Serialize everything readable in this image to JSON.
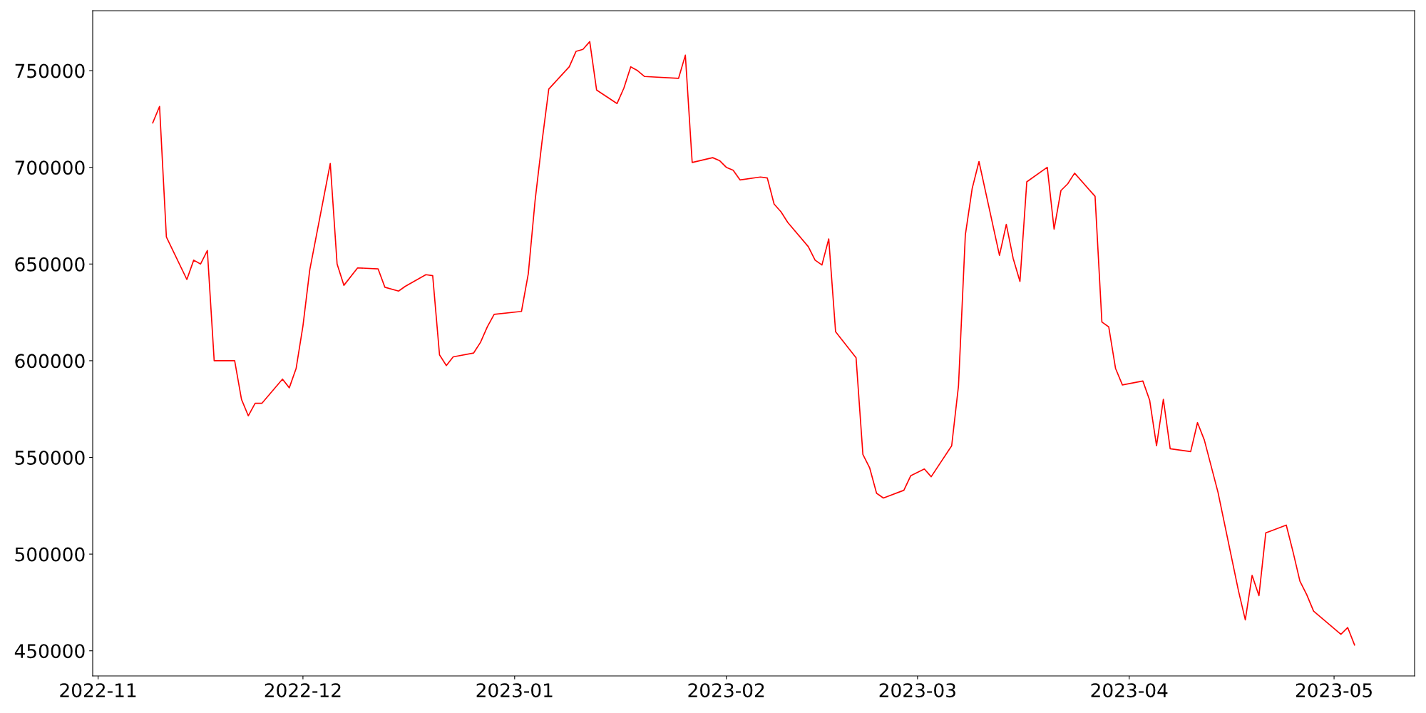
{
  "chart_data": {
    "type": "line",
    "x": [
      "2022-11-09",
      "2022-11-10",
      "2022-11-11",
      "2022-11-14",
      "2022-11-15",
      "2022-11-16",
      "2022-11-17",
      "2022-11-18",
      "2022-11-21",
      "2022-11-22",
      "2022-11-23",
      "2022-11-24",
      "2022-11-25",
      "2022-11-28",
      "2022-11-29",
      "2022-11-30",
      "2022-12-01",
      "2022-12-02",
      "2022-12-05",
      "2022-12-06",
      "2022-12-07",
      "2022-12-09",
      "2022-12-12",
      "2022-12-13",
      "2022-12-15",
      "2022-12-16",
      "2022-12-19",
      "2022-12-20",
      "2022-12-21",
      "2022-12-22",
      "2022-12-23",
      "2022-12-26",
      "2022-12-27",
      "2022-12-28",
      "2022-12-29",
      "2023-01-02",
      "2023-01-03",
      "2023-01-04",
      "2023-01-05",
      "2023-01-06",
      "2023-01-09",
      "2023-01-10",
      "2023-01-11",
      "2023-01-12",
      "2023-01-13",
      "2023-01-16",
      "2023-01-17",
      "2023-01-18",
      "2023-01-19",
      "2023-01-20",
      "2023-01-25",
      "2023-01-26",
      "2023-01-27",
      "2023-01-30",
      "2023-01-31",
      "2023-02-01",
      "2023-02-02",
      "2023-02-03",
      "2023-02-06",
      "2023-02-07",
      "2023-02-08",
      "2023-02-09",
      "2023-02-10",
      "2023-02-13",
      "2023-02-14",
      "2023-02-15",
      "2023-02-16",
      "2023-02-17",
      "2023-02-20",
      "2023-02-21",
      "2023-02-22",
      "2023-02-23",
      "2023-02-24",
      "2023-02-27",
      "2023-02-28",
      "2023-03-02",
      "2023-03-03",
      "2023-03-06",
      "2023-03-07",
      "2023-03-08",
      "2023-03-09",
      "2023-03-10",
      "2023-03-13",
      "2023-03-14",
      "2023-03-15",
      "2023-03-16",
      "2023-03-17",
      "2023-03-20",
      "2023-03-21",
      "2023-03-22",
      "2023-03-23",
      "2023-03-24",
      "2023-03-27",
      "2023-03-28",
      "2023-03-29",
      "2023-03-30",
      "2023-03-31",
      "2023-04-03",
      "2023-04-04",
      "2023-04-05",
      "2023-04-06",
      "2023-04-07",
      "2023-04-10",
      "2023-04-11",
      "2023-04-12",
      "2023-04-14",
      "2023-04-17",
      "2023-04-18",
      "2023-04-19",
      "2023-04-20",
      "2023-04-21",
      "2023-04-24",
      "2023-04-25",
      "2023-04-26",
      "2023-04-27",
      "2023-04-28",
      "2023-05-02",
      "2023-05-03",
      "2023-05-04"
    ],
    "series": [
      {
        "color": "#ff0000",
        "values": [
          723000,
          731500,
          664000,
          642000,
          652000,
          650000,
          657000,
          600000,
          600000,
          580000,
          571500,
          578000,
          578000,
          590500,
          586000,
          596000,
          618000,
          647000,
          702000,
          650000,
          639000,
          648000,
          647500,
          638000,
          636000,
          638500,
          644500,
          644000,
          603000,
          597500,
          602000,
          604000,
          609500,
          617500,
          624000,
          625500,
          645000,
          683000,
          713000,
          740500,
          752000,
          760000,
          761000,
          765000,
          740000,
          733000,
          741000,
          752000,
          750000,
          747000,
          746000,
          758000,
          702500,
          705000,
          703500,
          700000,
          698500,
          693500,
          695000,
          694500,
          681000,
          677000,
          671500,
          659000,
          652000,
          649500,
          663000,
          615000,
          601500,
          551500,
          544500,
          531500,
          529000,
          533000,
          540500,
          544000,
          540000,
          556000,
          587000,
          665000,
          689000,
          703000,
          654500,
          670500,
          653000,
          641000,
          692500,
          700000,
          668000,
          688000,
          691500,
          697000,
          685000,
          620000,
          617500,
          596000,
          587500,
          589500,
          579500,
          556000,
          580000,
          554500,
          553000,
          568000,
          559000,
          532000,
          481000,
          466000,
          489000,
          478500,
          511000,
          515000,
          501000,
          486000,
          479000,
          470500,
          458500,
          462000,
          453000
        ]
      }
    ],
    "xlim": [
      "2022-10-31T05:00",
      "2023-05-12T19:00"
    ],
    "xticks": [
      {
        "value": "2022-11-01",
        "label": "2022-11"
      },
      {
        "value": "2022-12-01",
        "label": "2022-12"
      },
      {
        "value": "2023-01-01",
        "label": "2023-01"
      },
      {
        "value": "2023-02-01",
        "label": "2023-02"
      },
      {
        "value": "2023-03-01",
        "label": "2023-03"
      },
      {
        "value": "2023-04-01",
        "label": "2023-04"
      },
      {
        "value": "2023-05-01",
        "label": "2023-05"
      }
    ],
    "ylim": [
      437000,
      781000
    ],
    "yticks": [
      450000,
      500000,
      550000,
      600000,
      650000,
      700000,
      750000
    ],
    "grid": false,
    "legend": false,
    "marker": "none",
    "line_style": "solid"
  }
}
